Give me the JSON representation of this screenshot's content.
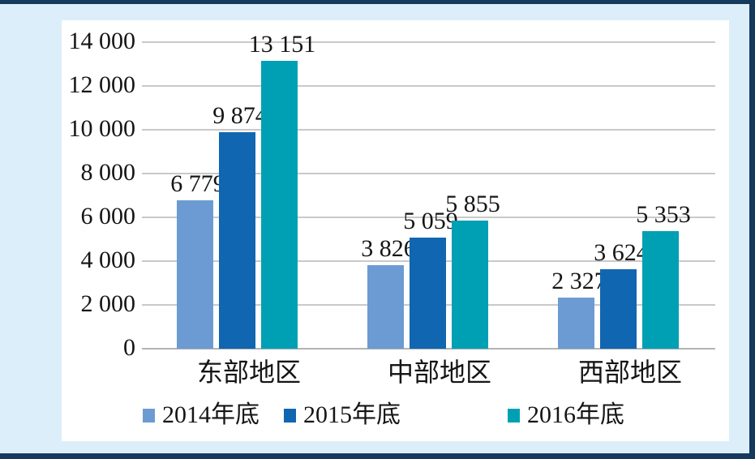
{
  "frame": {
    "background_color": "#DCEEF9",
    "border_color": "#16395E",
    "panel_color": "#FFFFFF"
  },
  "chart_data": {
    "type": "bar",
    "title": "",
    "xlabel": "",
    "ylabel": "",
    "categories": [
      "东部地区",
      "中部地区",
      "西部地区"
    ],
    "series": [
      {
        "name": "2014年底",
        "color": "#6B9BD2",
        "values": [
          6779,
          3826,
          2327
        ],
        "value_labels": [
          "6 779",
          "3 826",
          "2 327"
        ]
      },
      {
        "name": "2015年底",
        "color": "#1066B1",
        "values": [
          9874,
          5059,
          3624
        ],
        "value_labels": [
          "9 874",
          "5 059",
          "3 624"
        ]
      },
      {
        "name": "2016年底",
        "color": "#00A0B4",
        "values": [
          13151,
          5855,
          5353
        ],
        "value_labels": [
          "13 151",
          "5 855",
          "5 353"
        ]
      }
    ],
    "ylim": [
      0,
      14000
    ],
    "ytick_interval": 2000,
    "ytick_labels": [
      "0",
      "2 000",
      "4 000",
      "6 000",
      "8 000",
      "10 000",
      "12 000",
      "14 000"
    ],
    "grid": true,
    "gridline_color": "#C9C9C9",
    "axis_line_color": "#B3B3B3",
    "legend_position": "bottom",
    "value_labels_shown": true
  }
}
